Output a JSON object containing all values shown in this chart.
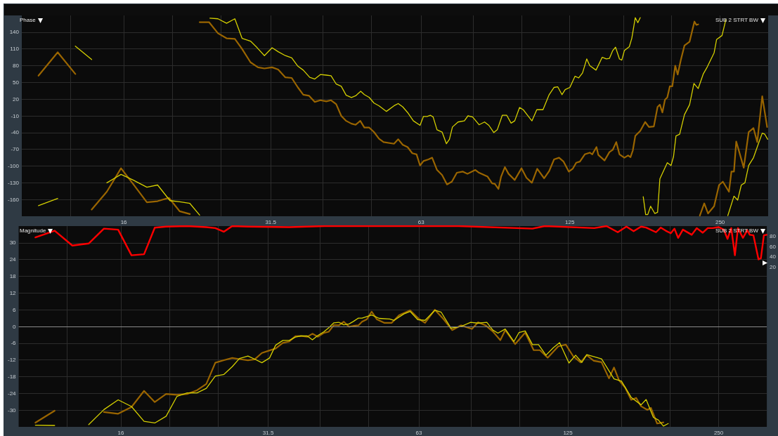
{
  "chart_data": [
    {
      "type": "line",
      "title": "Phase",
      "annotations": [
        "SUB 2 STRT BW"
      ],
      "log": "x",
      "grid": true,
      "marker": "none",
      "xlim": [
        10,
        312
      ],
      "xticks": [
        {
          "value": 12.5,
          "label": null
        },
        16,
        {
          "value": 20,
          "label": null
        },
        {
          "value": 25,
          "label": null
        },
        31.5,
        {
          "value": 40,
          "label": null
        },
        {
          "value": 50,
          "label": null
        },
        63,
        {
          "value": 80,
          "label": null
        },
        {
          "value": 100,
          "label": null
        },
        125,
        {
          "value": 160,
          "label": null
        },
        {
          "value": 200,
          "label": null
        },
        250
      ],
      "ylim": [
        -190,
        170
      ],
      "yticks": [
        -160,
        -130,
        -100,
        -70,
        -40,
        -10,
        20,
        50,
        80,
        110,
        140
      ],
      "series": [
        {
          "color": "#9a6500",
          "x": [
            10.8,
            11.8,
            12.8,
            13.3,
            13.8,
            14.8,
            15.8,
            16.7,
            17.8,
            18.7,
            19.7,
            20.7,
            21.7,
            22.2,
            22.7,
            23.7,
            24.7,
            25.7,
            26.7,
            27.6,
            28.7,
            29.7,
            30.6,
            31.7,
            32.6,
            33.7,
            34.7,
            35.7,
            36.6,
            37.6,
            38.6,
            39.6,
            40.7,
            41.6,
            42.6,
            43.6,
            44.6,
            45.7,
            46.6,
            47.6,
            48.5,
            49.6,
            50.7,
            51.9,
            53.0,
            55.6,
            56.7,
            57.9,
            59.2,
            60.5,
            61.7,
            62.7,
            63.7,
            65.2,
            66.3,
            67.8,
            69.4,
            71.0,
            72.6,
            74.3,
            76.4,
            78.0,
            80.9,
            82.3,
            85.6,
            87.4,
            88.5,
            90.0,
            91.1,
            92.7,
            94.3,
            97.0,
            100.1,
            102.4,
            105.0,
            107.6,
            111.1,
            113.7,
            116.3,
            119.0,
            121.5,
            124.5,
            126.7,
            128.8,
            131.0,
            134.0,
            137.1,
            138.7,
            141.4,
            142.6,
            146.8,
            150.1,
            152.4,
            154.9,
            157.2,
            160.8,
            163.6,
            165.4,
            167.2,
            169.1,
            173.0,
            177.0,
            180.1,
            184.2,
            187.4,
            189.4,
            191.6,
            193.9,
            196.0,
            198.3,
            200.6,
            203.3,
            205.6,
            208.6,
            212.1,
            217.2,
            222.1,
            224.1,
            226.0,
            226.8,
            227.7,
            232.4,
            236.5,
            243.2,
            248.8,
            253.2,
            260.4,
            263.4,
            266.5,
            269.3,
            278.8,
            285.2,
            291.6,
            296.7,
            303.6,
            310.5
          ],
          "values": [
            62,
            104,
            65,
            null,
            -178,
            -146,
            -104,
            -132,
            -165,
            -163,
            -157,
            -181,
            -186,
            null,
            158,
            158,
            138,
            129,
            128,
            110,
            86,
            77,
            75,
            77,
            73,
            59,
            58,
            41,
            28,
            26,
            15,
            18,
            16,
            18,
            11,
            -10,
            -19,
            -24,
            -26,
            -19,
            -31,
            -31,
            -39,
            -51,
            -57,
            -60,
            -52,
            -62,
            -66,
            -77,
            -79,
            -99,
            -91,
            -88,
            -85,
            -107,
            -116,
            -133,
            -128,
            -112,
            -110,
            -114,
            -107,
            -112,
            -119,
            -131,
            -132,
            -141,
            -119,
            -102,
            -114,
            -125,
            -104,
            -121,
            -130,
            -105,
            -122,
            -109,
            -88,
            -85,
            -92,
            -110,
            -105,
            -94,
            -92,
            -79,
            -76,
            -79,
            -66,
            -80,
            -90,
            -75,
            -71,
            -57,
            -79,
            -85,
            -81,
            -84,
            -72,
            -46,
            -37,
            -21,
            -30,
            -29,
            6,
            10,
            -4,
            19,
            23,
            43,
            43,
            80,
            64,
            90,
            116,
            123,
            159,
            153,
            154,
            null,
            -189,
            -167,
            -185,
            -172,
            -134,
            -128,
            -146,
            -110,
            -110,
            -56,
            -103,
            -39,
            -32,
            -57,
            25,
            -30
          ]
        },
        {
          "color": "#d4cf00",
          "x": [
            10.8,
            11.8,
            12.3,
            12.8,
            13.8,
            14.3,
            14.8,
            15.8,
            16.7,
            17.8,
            18.7,
            19.8,
            20.7,
            21.7,
            22.7,
            23.2,
            23.8,
            24.7,
            25.7,
            26.7,
            27.6,
            28.7,
            29.6,
            30.6,
            31.7,
            32.6,
            33.7,
            34.7,
            35.7,
            36.6,
            37.7,
            38.6,
            39.6,
            40.7,
            41.6,
            42.6,
            43.6,
            44.6,
            45.7,
            46.6,
            47.7,
            48.5,
            49.6,
            50.7,
            51.9,
            53.7,
            55.6,
            56.7,
            57.9,
            59.2,
            60.8,
            62.7,
            63.7,
            64.8,
            65.8,
            66.6,
            67.8,
            69.4,
            70.8,
            71.8,
            72.8,
            74.7,
            76.9,
            78.2,
            79.9,
            82.3,
            84.4,
            86.1,
            88.1,
            89.5,
            91.6,
            93.5,
            95.4,
            97.0,
            99.2,
            100.9,
            102.7,
            105.0,
            107.4,
            110.5,
            113.7,
            116.3,
            118.3,
            120.6,
            122.4,
            125.1,
            128.1,
            130.3,
            132.6,
            135.2,
            137.1,
            141.1,
            145.2,
            148.0,
            150.1,
            152.4,
            154.4,
            157.2,
            158.9,
            160.8,
            164.5,
            166.4,
            169.1,
            171.1,
            173.0,
            174.5,
            175.4,
            177.4,
            179.1,
            181.5,
            185.0,
            187.4,
            189.4,
            196.0,
            199.4,
            201.7,
            204.0,
            207.5,
            212.1,
            217.2,
            221.6,
            226.0,
            231.3,
            235.1,
            243.2,
            246.0,
            252.2,
            256.8,
            257.6,
            259.0,
            266.5,
            271.1,
            275.7,
            280.3,
            285.2,
            291.6,
            298.5,
            303.6,
            307.2,
            311.3
          ],
          "values": [
            -171,
            -158,
            null,
            115,
            91,
            null,
            -130,
            -115,
            -125,
            -138,
            -134,
            -162,
            -164,
            -167,
            -188,
            null,
            165,
            164,
            156,
            164,
            129,
            124,
            112,
            98,
            112,
            105,
            98,
            94,
            79,
            72,
            59,
            56,
            64,
            63,
            62,
            47,
            43,
            27,
            23,
            26,
            34,
            28,
            23,
            13,
            8,
            -2,
            8,
            12,
            6,
            -4,
            -19,
            -27,
            -11,
            -11,
            -9,
            -12,
            -35,
            -39,
            -60,
            -52,
            -30,
            -21,
            -19,
            -10,
            -12,
            -26,
            -21,
            -27,
            -40,
            -35,
            -9,
            -9,
            -23,
            -19,
            5,
            1,
            -8,
            -19,
            1,
            1,
            28,
            41,
            42,
            28,
            37,
            41,
            61,
            58,
            67,
            92,
            80,
            72,
            95,
            92,
            93,
            107,
            113,
            92,
            90,
            107,
            114,
            129,
            166,
            157,
            166,
            null,
            -155,
            -187,
            -187,
            -172,
            -185,
            -183,
            -123,
            -94,
            -99,
            -83,
            -46,
            -43,
            -8,
            10,
            48,
            39,
            65,
            76,
            103,
            127,
            134,
            163,
            null,
            -189,
            -154,
            -161,
            -134,
            -130,
            -99,
            -85,
            -59,
            -41,
            -43,
            -52
          ]
        }
      ]
    },
    {
      "type": "line",
      "title": "Magnitude",
      "annotations": [
        "SUB 2 STRT BW"
      ],
      "log": "x",
      "grid": true,
      "marker": "none",
      "xlim": [
        10,
        312
      ],
      "xticks": [
        {
          "value": 12.5,
          "label": null
        },
        16,
        {
          "value": 20,
          "label": null
        },
        {
          "value": 25,
          "label": null
        },
        31.5,
        {
          "value": 40,
          "label": null
        },
        {
          "value": 50,
          "label": null
        },
        63,
        {
          "value": 80,
          "label": null
        },
        {
          "value": 100,
          "label": null
        },
        125,
        {
          "value": 160,
          "label": null
        },
        {
          "value": 200,
          "label": null
        },
        250
      ],
      "ylim": [
        -36,
        36
      ],
      "yticks": [
        -30,
        -24,
        -18,
        -12,
        -6,
        0,
        6,
        12,
        18,
        24,
        30
      ],
      "y2lim": [
        -292,
        100
      ],
      "y2ticks": [
        20,
        40,
        60,
        80
      ],
      "ref_lines": [
        {
          "axis": "y",
          "value": 0,
          "color": "#8a8a8a"
        }
      ],
      "series": [
        {
          "color": "#ff0000",
          "axis": "y2",
          "x": [
            10.8,
            11.8,
            12.8,
            13.8,
            14.8,
            15.8,
            16.8,
            17.8,
            18.7,
            19.7,
            21.7,
            23.7,
            24.7,
            25.7,
            26.7,
            28.7,
            34.7,
            40.9,
            51.4,
            53.7,
            75.5,
            106.2,
            112.4,
            141.1,
            149.3,
            157.2,
            163.6,
            169.1,
            175.0,
            179.1,
            187.4,
            191.6,
            196.0,
            200.6,
            204.0,
            207.5,
            212.1,
            220.9,
            226.0,
            232.4,
            237.8,
            243.2,
            250.2,
            256.0,
            260.4,
            264.9,
            269.4,
            273.2,
            279.5,
            285.2,
            288.5,
            293.4,
            300.3,
            303.6,
            307.8,
            311.8
          ],
          "values": [
            78,
            91,
            62,
            66,
            95,
            93,
            43,
            45,
            97,
            99,
            100,
            98,
            96,
            89,
            100,
            99,
            98,
            100,
            100,
            100,
            100,
            95,
            100,
            96,
            100,
            88,
            99,
            90,
            99,
            97,
            88,
            97,
            91,
            86,
            95,
            77,
            93,
            83,
            96,
            87,
            96,
            96,
            98,
            93,
            75,
            96,
            43,
            96,
            77,
            92,
            83,
            82,
            35,
            37,
            82,
            83
          ]
        },
        {
          "color": "#9a6500",
          "x": [
            10.8,
            11.8,
            13.0,
            14.8,
            15.8,
            16.8,
            17.8,
            18.7,
            19.7,
            20.7,
            21.7,
            22.7,
            23.7,
            24.7,
            25.7,
            26.7,
            27.6,
            28.7,
            29.6,
            30.6,
            31.7,
            32.6,
            33.7,
            34.7,
            35.7,
            36.6,
            37.7,
            38.6,
            39.6,
            40.7,
            41.6,
            42.6,
            43.6,
            44.6,
            45.7,
            46.6,
            47.7,
            48.5,
            49.6,
            50.7,
            51.9,
            53.7,
            55.6,
            57.5,
            60.5,
            63.0,
            64.8,
            67.8,
            70.5,
            73.4,
            76.4,
            80.4,
            82.7,
            85.6,
            88.5,
            91.6,
            93.7,
            98.1,
            102.7,
            106.8,
            109.9,
            113.9,
            119.6,
            123.8,
            128.1,
            132.5,
            136.3,
            140.8,
            145.9,
            151.0,
            154.5,
            158.1,
            162.6,
            167.2,
            171.1,
            175.0,
            180.1,
            183.1,
            188.4,
            193.9
          ],
          "values": [
            -34.5,
            -30.2,
            null,
            -30.7,
            -31.3,
            -28.9,
            -23.1,
            -27.1,
            -24.2,
            -24.5,
            -24.2,
            -22.9,
            -20.6,
            -13,
            -12.1,
            -11.3,
            -11.7,
            -12.1,
            -11.8,
            -9.5,
            -8.6,
            -7.9,
            -5.9,
            -5.4,
            -3.5,
            -3.4,
            -3.7,
            -2.6,
            -3.7,
            -2.3,
            -1.9,
            0.5,
            0.4,
            1.7,
            -0.1,
            0.2,
            0.4,
            1.7,
            2.6,
            5.3,
            2.6,
            1.3,
            1.3,
            4.0,
            5.8,
            2.7,
            1.3,
            6.0,
            2.7,
            -1.3,
            0.4,
            -0.9,
            1.5,
            0.4,
            -1.8,
            -4.9,
            -1.3,
            -6.3,
            -2.2,
            -8.5,
            -8.5,
            -11.2,
            -7.1,
            -6.5,
            -10.7,
            -12.9,
            -10.3,
            -12.3,
            -12.8,
            -18.6,
            -14.7,
            -19.3,
            -21.9,
            -26.3,
            -25.6,
            -28.6,
            -29.9,
            -29.2,
            -34.8,
            -34.4
          ]
        },
        {
          "color": "#d4cf00",
          "x": [
            10.8,
            11.8,
            12.7,
            13.8,
            14.8,
            15.8,
            16.8,
            17.8,
            18.7,
            19.7,
            20.7,
            21.7,
            22.7,
            23.7,
            24.7,
            25.7,
            26.7,
            27.6,
            28.7,
            29.6,
            30.6,
            31.7,
            32.6,
            33.7,
            34.7,
            35.7,
            36.6,
            37.7,
            38.6,
            39.6,
            40.7,
            41.6,
            42.6,
            43.6,
            44.6,
            45.7,
            46.6,
            47.7,
            48.5,
            50.7,
            52.5,
            55.1,
            56.2,
            58.8,
            60.5,
            62.7,
            64.8,
            67.8,
            69.8,
            73.0,
            76.4,
            79.9,
            82.7,
            86.1,
            88.5,
            90.6,
            93.7,
            97.5,
            99.8,
            102.7,
            106.2,
            109.2,
            113.0,
            116.9,
            120.3,
            125.6,
            129.5,
            133.3,
            136.3,
            145.9,
            154.5,
            159.9,
            167.2,
            175.0,
            179.1,
            185.2,
            189.4,
            193.9,
            198.3
          ],
          "values": [
            -35.4,
            -35.5,
            null,
            -35.2,
            -29.8,
            -26.3,
            -28.7,
            -34,
            -34.6,
            -32.2,
            -25.1,
            -23.8,
            -23.8,
            -22.2,
            -17.8,
            -17.2,
            -14.4,
            -11.5,
            -10.6,
            -11.7,
            -13,
            -11.3,
            -6.7,
            -5,
            -5,
            -3.8,
            -3.4,
            -3.4,
            -4.8,
            -3.2,
            -1.9,
            -0.5,
            1.3,
            1.5,
            0.6,
            0.9,
            1.8,
            3.0,
            3.0,
            4.1,
            2.9,
            2.7,
            2.2,
            4.5,
            5.4,
            2.4,
            2.2,
            5.8,
            5.1,
            -0.6,
            0,
            1.5,
            1.2,
            1.5,
            -1.3,
            -2.4,
            -0.9,
            -5.4,
            -2.2,
            -1.6,
            -6.5,
            -6.5,
            -10.3,
            -7.6,
            -5.8,
            -13.1,
            -10.3,
            -12.9,
            -10.1,
            -11.6,
            -18.8,
            -19.6,
            -25.4,
            -28.1,
            -26.2,
            -32.6,
            -33.5,
            -35.7,
            -34.8
          ]
        }
      ]
    }
  ]
}
